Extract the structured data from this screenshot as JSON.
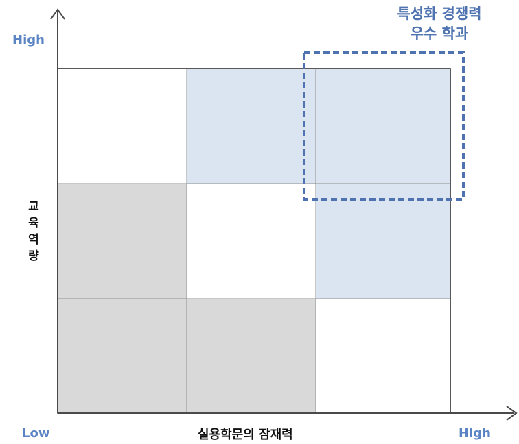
{
  "callout": {
    "line1": "특성화 경쟁력",
    "line2": "우수 학과"
  },
  "y_axis": {
    "high_label": "High",
    "title": "교육역량"
  },
  "x_axis": {
    "low_label": "Low",
    "title": "실용학문의  잠재력",
    "high_label": "High"
  },
  "grid": {
    "rows": 3,
    "cols": 3,
    "cells": [
      [
        "white",
        "blue",
        "blue"
      ],
      [
        "gray",
        "white",
        "blue"
      ],
      [
        "gray",
        "gray",
        "white"
      ]
    ]
  },
  "colors": {
    "blue": "#dbe5f1",
    "gray": "#d9d9d9",
    "white": "#ffffff",
    "axis": "#4a4a4a",
    "grid_line": "#8f8f8f",
    "accent": "#5b84c4",
    "callout_border": "#4f73b0"
  }
}
